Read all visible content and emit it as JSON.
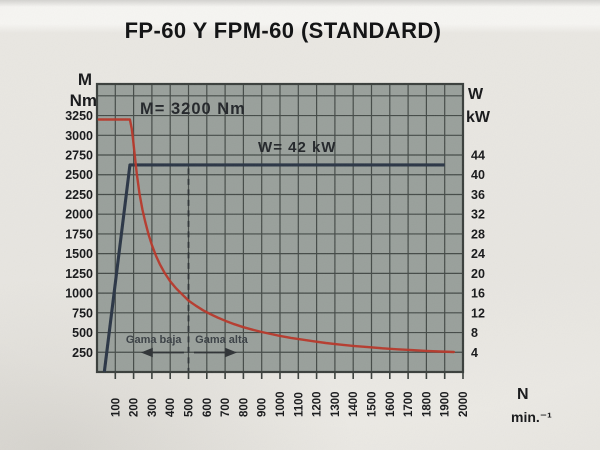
{
  "title": "FP-60 Y FPM-60 (STANDARD)",
  "chart_data": {
    "type": "line",
    "title": "FP-60 Y FPM-60 (STANDARD)",
    "x_axis": {
      "title_lines": [
        "N",
        "min.⁻¹"
      ],
      "min": 0,
      "max": 2000,
      "gridline_step": 100,
      "ticks": [
        100,
        200,
        300,
        400,
        500,
        600,
        700,
        800,
        900,
        1000,
        1100,
        1200,
        1300,
        1400,
        1500,
        1600,
        1700,
        1800,
        1900,
        2000
      ]
    },
    "left_axis": {
      "title_lines": [
        "M",
        "Nm"
      ],
      "min": 0,
      "max": 3650,
      "gridline_step": 250,
      "grid_top": 3500,
      "ticks": [
        3250,
        3000,
        2750,
        2500,
        2250,
        2000,
        1750,
        1500,
        1250,
        1000,
        750,
        500,
        250
      ]
    },
    "right_axis": {
      "title_lines": [
        "W",
        "kW"
      ],
      "nm_per_kw": 62.5,
      "ticks": [
        44,
        40,
        36,
        32,
        28,
        24,
        20,
        16,
        12,
        8,
        4
      ]
    },
    "series": [
      {
        "name": "torque-curve",
        "annotation": "M= 3200 Nm",
        "units": "Nm",
        "color": "#b73729",
        "points": [
          [
            10,
            3200
          ],
          [
            180,
            3200
          ],
          [
            190,
            3080
          ],
          [
            198,
            2930
          ],
          [
            207,
            2730
          ],
          [
            218,
            2500
          ],
          [
            232,
            2260
          ],
          [
            248,
            2060
          ],
          [
            264,
            1900
          ],
          [
            282,
            1740
          ],
          [
            300,
            1610
          ],
          [
            322,
            1475
          ],
          [
            345,
            1360
          ],
          [
            370,
            1255
          ],
          [
            400,
            1150
          ],
          [
            432,
            1060
          ],
          [
            465,
            985
          ],
          [
            500,
            905
          ],
          [
            540,
            840
          ],
          [
            580,
            782
          ],
          [
            620,
            732
          ],
          [
            660,
            690
          ],
          [
            700,
            650
          ],
          [
            750,
            606
          ],
          [
            800,
            568
          ],
          [
            850,
            536
          ],
          [
            900,
            507
          ],
          [
            950,
            482
          ],
          [
            1000,
            458
          ],
          [
            1060,
            432
          ],
          [
            1120,
            410
          ],
          [
            1180,
            390
          ],
          [
            1250,
            368
          ],
          [
            1320,
            350
          ],
          [
            1400,
            331
          ],
          [
            1480,
            315
          ],
          [
            1560,
            300
          ],
          [
            1640,
            288
          ],
          [
            1720,
            277
          ],
          [
            1800,
            267
          ],
          [
            1870,
            260
          ],
          [
            1950,
            253
          ]
        ]
      },
      {
        "name": "power-curve",
        "annotation": "W= 42 kW",
        "units": "kW",
        "color": "#2b3646",
        "points": [
          [
            40,
            0
          ],
          [
            180,
            42
          ],
          [
            1900,
            42
          ]
        ]
      }
    ],
    "divider_rpm": 500,
    "regions": [
      {
        "label": "Gama baja",
        "direction": "left"
      },
      {
        "label": "Gama alta",
        "direction": "right"
      }
    ],
    "grid": true,
    "legend": "none"
  },
  "colors": {
    "paper": "#e8e6e1",
    "plot_background": "#99a09b",
    "grid_line": "#454b48",
    "border": "#3a3f3c",
    "torque": "#b73729",
    "power": "#2b3646",
    "text": "#17181a",
    "region_text": "#3b4146"
  }
}
